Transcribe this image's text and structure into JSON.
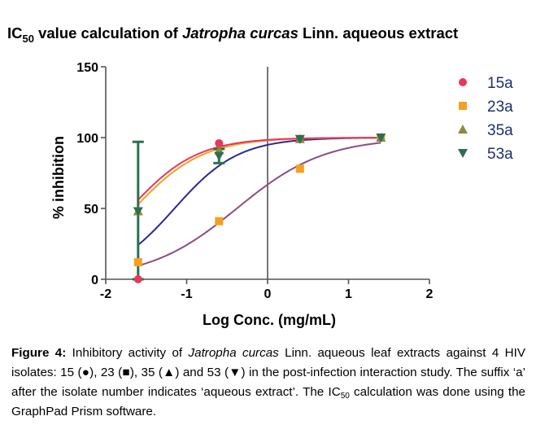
{
  "chart_data": {
    "type": "scatter",
    "title": "IC50 value calculation of Jatropha curcas Linn. aqueous extract",
    "title_parts": {
      "pre": "IC",
      "sub": "50",
      "mid": " value calculation of ",
      "italic": "Jatropha curcas",
      "post": " Linn. aqueous extract"
    },
    "xlabel": "Log Conc. (mg/mL)",
    "ylabel": "% inhibition",
    "xlim": [
      -2,
      2
    ],
    "ylim": [
      0,
      150
    ],
    "xticks": [
      "-2",
      "-1",
      "0",
      "1",
      "2"
    ],
    "yticks": [
      "0",
      "50",
      "100",
      "150"
    ],
    "x_tick_values": [
      -2,
      -1,
      0,
      1,
      2
    ],
    "y_tick_values": [
      0,
      50,
      100,
      150
    ],
    "grid": false,
    "vertical_reference_line_x": 0,
    "legend_position": "top-right",
    "series": [
      {
        "name": "15a",
        "marker": "circle",
        "color": "#e8375a",
        "curve_color": "#e8375a",
        "x": [
          -1.6,
          -0.6,
          0.4,
          1.4
        ],
        "y": [
          0,
          96,
          99,
          100
        ],
        "fit": {
          "ec50_log": -1.7,
          "hill": 1.05
        }
      },
      {
        "name": "23a",
        "marker": "square",
        "color": "#f5a022",
        "curve_color": "#8a4e7e",
        "x": [
          -1.6,
          -0.6,
          0.4,
          1.4
        ],
        "y": [
          12,
          41,
          78,
          100
        ],
        "fit": {
          "ec50_log": -0.38,
          "hill": 0.8
        }
      },
      {
        "name": "35a",
        "marker": "triangle-up",
        "color": "#8c8a3e",
        "curve_color": "#f5a022",
        "x": [
          -1.6,
          -0.6,
          0.4,
          1.4
        ],
        "y": [
          48,
          91,
          99,
          100
        ],
        "fit": {
          "ec50_log": -1.65,
          "hill": 1.02
        }
      },
      {
        "name": "53a",
        "marker": "triangle-down",
        "color": "#2e6e4e",
        "curve_color": "#2a2a8a",
        "x": [
          -1.6,
          -0.6,
          0.4,
          1.4
        ],
        "y": [
          48,
          87,
          99,
          100
        ],
        "y_err": [
          49,
          5,
          0,
          0
        ],
        "fit": {
          "ec50_log": -1.15,
          "hill": 1.1
        }
      }
    ]
  },
  "caption": {
    "label": "Figure 4:",
    "text1": " Inhibitory activity of ",
    "italic": "Jatropha curcas",
    "text2": " Linn. aqueous leaf extracts against 4 HIV isolates: 15 (●), 23 (■), 35 (▲) and 53 (▼) in the post-infection interaction study. The suffix ‘a’ after the isolate number indicates ‘aqueous extract’. The IC",
    "sub": "50",
    "text3": " calculation was done using the GraphPad Prism software."
  }
}
